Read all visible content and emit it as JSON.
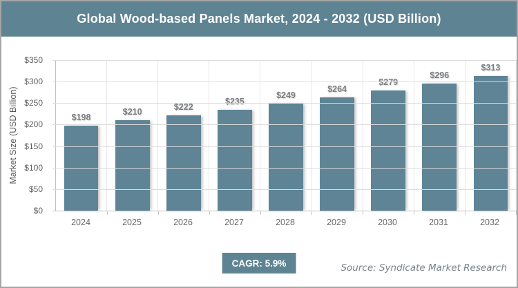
{
  "header": {
    "title": "Global Wood-based Panels Market, 2024 - 2032 (USD Billion)"
  },
  "chart_data": {
    "type": "bar",
    "title": "Global Wood-based Panels Market, 2024 - 2032 (USD Billion)",
    "categories": [
      "2024",
      "2025",
      "2026",
      "2027",
      "2028",
      "2029",
      "2030",
      "2031",
      "2032"
    ],
    "values": [
      198,
      210,
      222,
      235,
      249,
      264,
      279,
      296,
      313
    ],
    "value_labels": [
      "$198",
      "$210",
      "$222",
      "$235",
      "$249",
      "$264",
      "$279",
      "$296",
      "$313"
    ],
    "xlabel": "",
    "ylabel": "Market Size (USD Billion)",
    "ylim": [
      0,
      350
    ],
    "ytick_step": 50,
    "ytick_labels_top_to_bottom": [
      "$350",
      "$300",
      "$250",
      "$200",
      "$150",
      "$100",
      "$50",
      "$0"
    ],
    "grid": true,
    "legend": "none",
    "bar_color": "#5e8495",
    "title_bar_color": "#5e8392",
    "data_label_color": "#7c7f82",
    "axis_text_color": "#5e6163",
    "gridline_color": "#dcdcdc"
  },
  "footer": {
    "cagr_label": "CAGR: 5.9%",
    "source": "Source: Syndicate Market Research"
  },
  "colors": {
    "accent_slate": "#5e8493",
    "frame_border": "#a6a6a6",
    "background": "#ffffff"
  }
}
